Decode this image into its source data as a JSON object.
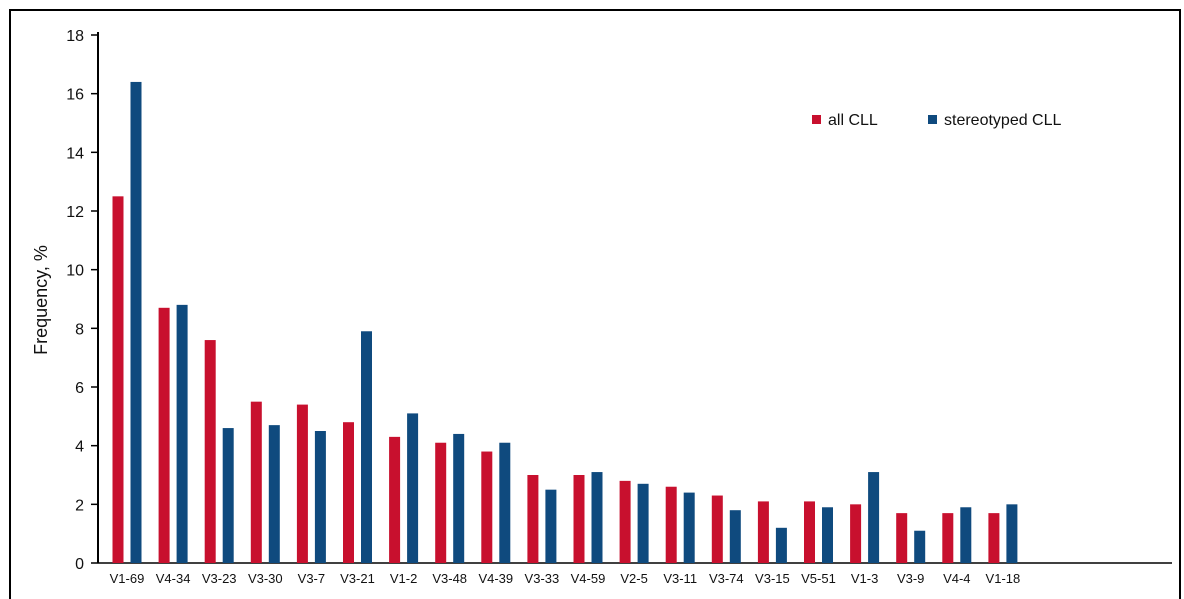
{
  "chart_data": {
    "type": "bar",
    "ylabel": "Frequency, %",
    "ylim": [
      0,
      18
    ],
    "yticks": [
      0,
      2,
      4,
      6,
      8,
      10,
      12,
      14,
      16,
      18
    ],
    "grid": false,
    "legend_position": "top-right",
    "categories": [
      "V1-69",
      "V4-34",
      "V3-23",
      "V3-30",
      "V3-7",
      "V3-21",
      "V1-2",
      "V3-48",
      "V4-39",
      "V3-33",
      "V4-59",
      "V2-5",
      "V3-11",
      "V3-74",
      "V3-15",
      "V5-51",
      "V1-3",
      "V3-9",
      "V4-4",
      "V1-18"
    ],
    "series": [
      {
        "name": "all CLL",
        "color": "#c8102e",
        "values": [
          12.5,
          8.7,
          7.6,
          5.5,
          5.4,
          4.8,
          4.3,
          4.1,
          3.8,
          3.0,
          3.0,
          2.8,
          2.6,
          2.3,
          2.1,
          2.1,
          2.0,
          1.7,
          1.7,
          1.7
        ]
      },
      {
        "name": "stereotyped CLL",
        "color": "#0f4a7e",
        "values": [
          16.4,
          8.8,
          4.6,
          4.7,
          4.5,
          7.9,
          5.1,
          4.4,
          4.1,
          2.5,
          3.1,
          2.7,
          2.4,
          1.8,
          1.2,
          1.9,
          3.1,
          1.1,
          1.9,
          2.0
        ]
      }
    ]
  }
}
